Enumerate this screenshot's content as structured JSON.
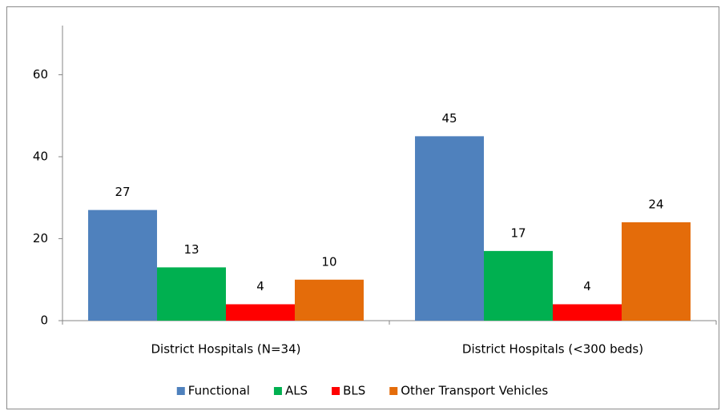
{
  "chart_data": {
    "type": "bar",
    "categories": [
      "District Hospitals (N=34)",
      "District Hospitals (<300 beds)"
    ],
    "series": [
      {
        "name": "Functional",
        "color": "#4f81bd",
        "values": [
          27,
          45
        ]
      },
      {
        "name": "ALS",
        "color": "#00b050",
        "values": [
          13,
          17
        ]
      },
      {
        "name": "BLS",
        "color": "#ff0000",
        "values": [
          4,
          4
        ]
      },
      {
        "name": "Other Transport Vehicles",
        "color": "#e46c0a",
        "values": [
          10,
          24
        ]
      }
    ],
    "ylim": [
      0,
      72
    ],
    "yticks": [
      0,
      20,
      40,
      60
    ],
    "grid": false,
    "legend": "bottom"
  }
}
